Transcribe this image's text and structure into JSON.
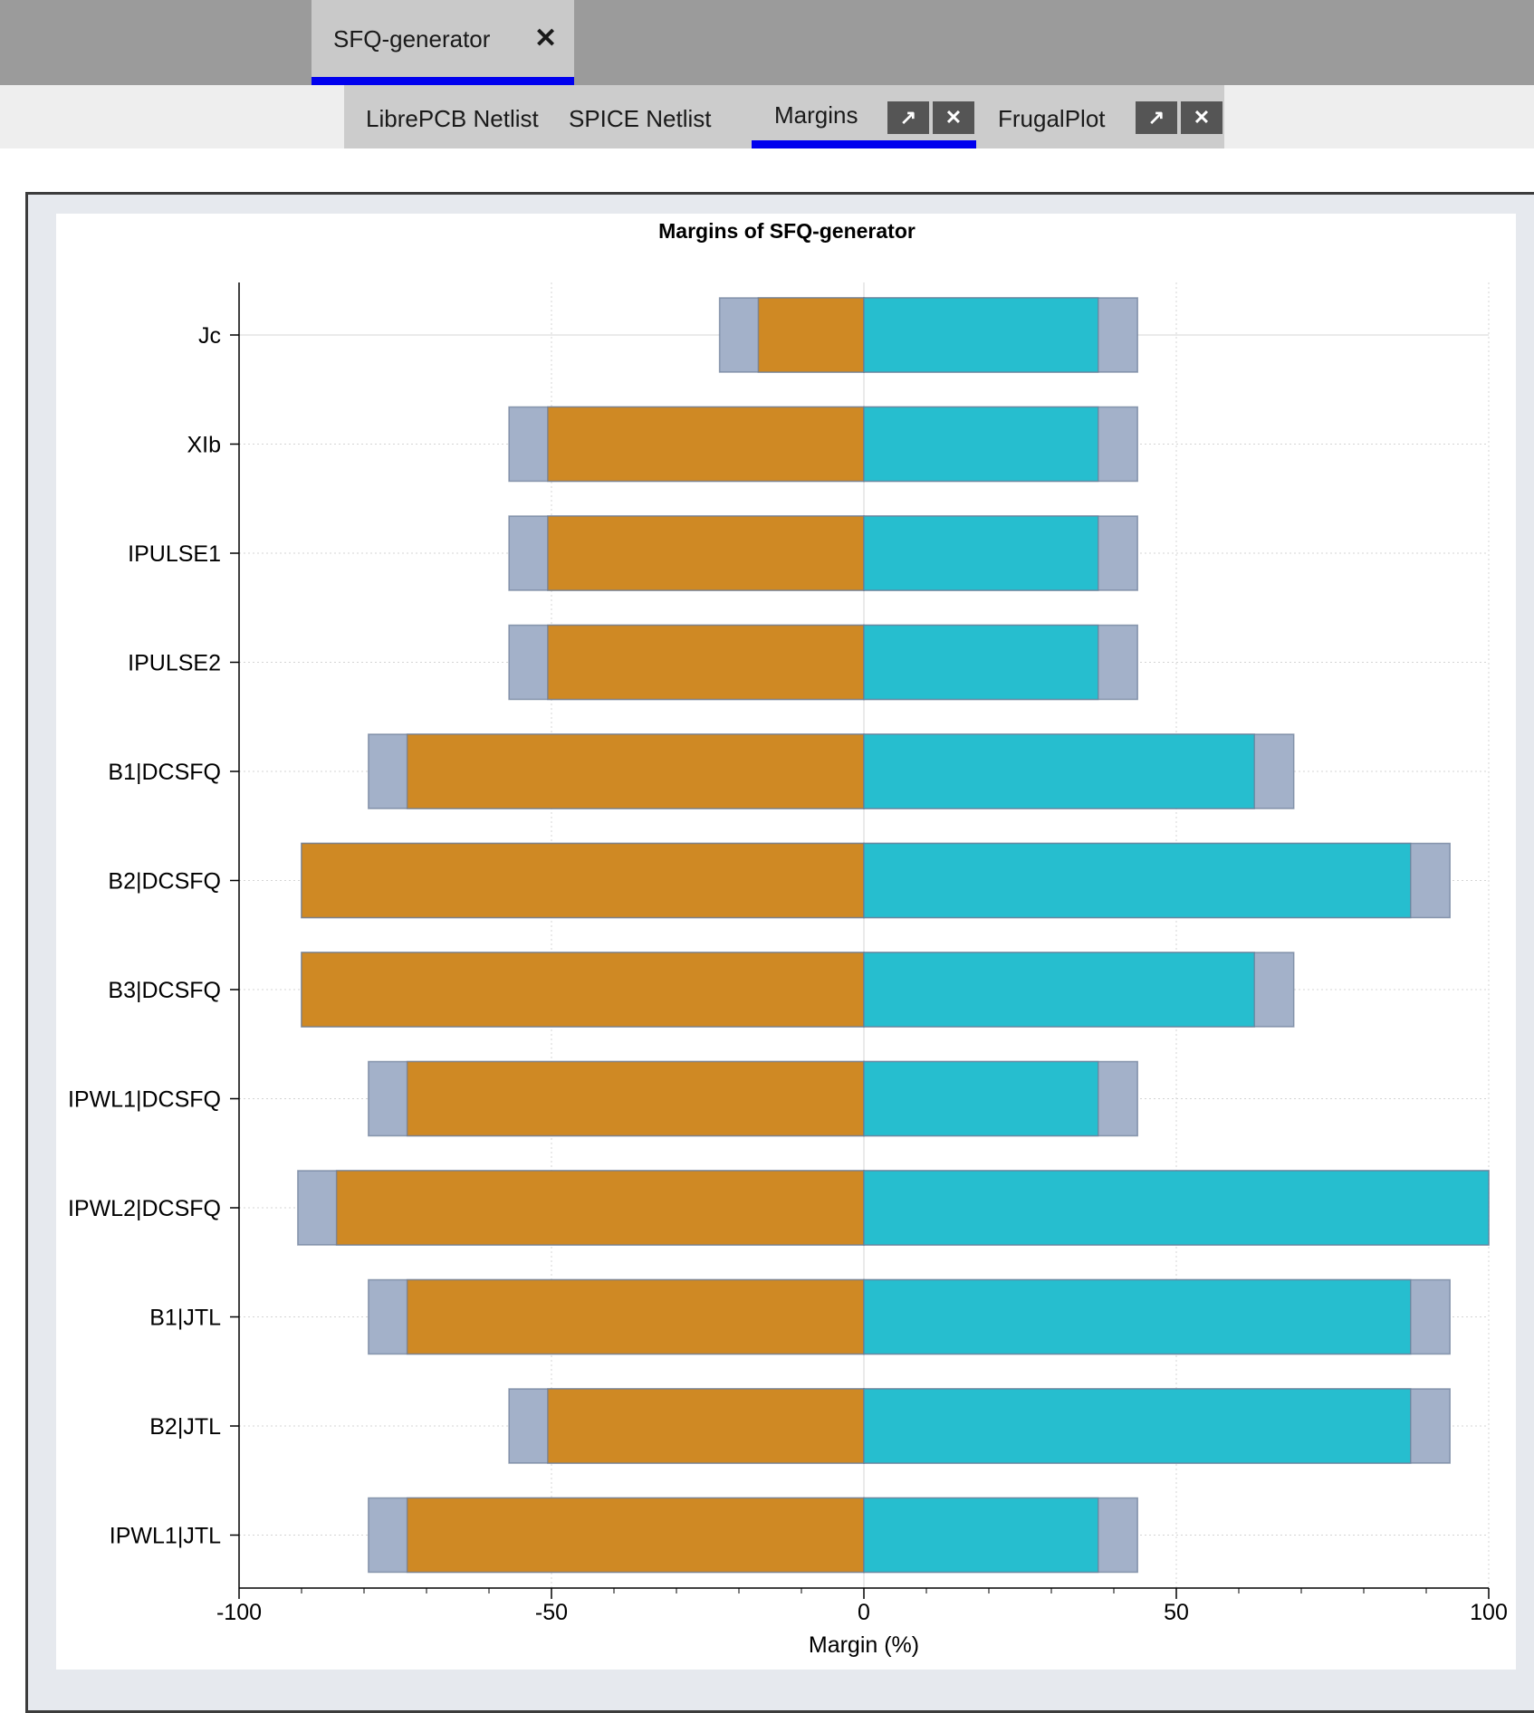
{
  "window": {
    "doc_tab": {
      "label": "SFQ-generator",
      "close_glyph": "✕"
    },
    "sub_tabs": [
      {
        "label": "LibrePCB Netlist"
      },
      {
        "label": "SPICE Netlist"
      },
      {
        "label": "Margins",
        "active": true
      },
      {
        "label": "FrugalPlot"
      }
    ],
    "popout_glyph": "↗",
    "close_glyph": "✕"
  },
  "chart_data": {
    "type": "bar",
    "orientation": "horizontal",
    "title": "Margins of SFQ-generator",
    "xlabel": "Margin (%)",
    "ylabel": "",
    "xlim": [
      -100,
      100
    ],
    "xticks": [
      -100,
      -50,
      0,
      50,
      100
    ],
    "xtick_labels": [
      "-100",
      "-50",
      "0",
      "50",
      "100"
    ],
    "grid": true,
    "categories": [
      "Jc",
      "XIb",
      "IPULSE1",
      "IPULSE2",
      "B1|DCSFQ",
      "B2|DCSFQ",
      "B3|DCSFQ",
      "IPWL1|DCSFQ",
      "IPWL2|DCSFQ",
      "B1|JTL",
      "B2|JTL",
      "IPWL1|JTL"
    ],
    "series": [
      {
        "color": "#a3b1c9",
        "values": [
          -23.1,
          -56.8,
          -56.8,
          -56.8,
          -79.3,
          -90,
          -90,
          -79.3,
          -90.6,
          -79.3,
          -56.8,
          -79.3
        ]
      },
      {
        "color": "#cf8924",
        "values": [
          -16.9,
          -50.6,
          -50.6,
          -50.6,
          -73.1,
          -90,
          -90,
          -73.1,
          -84.4,
          -73.1,
          -50.6,
          -73.1
        ]
      },
      {
        "color": "#a3b1c9",
        "values": [
          43.8,
          43.8,
          43.8,
          43.8,
          68.8,
          93.8,
          68.8,
          43.8,
          100,
          93.8,
          93.8,
          43.8
        ]
      },
      {
        "color": "#26becf",
        "values": [
          37.5,
          37.5,
          37.5,
          37.5,
          62.5,
          87.5,
          62.5,
          37.5,
          100,
          87.5,
          87.5,
          37.5
        ]
      }
    ]
  }
}
